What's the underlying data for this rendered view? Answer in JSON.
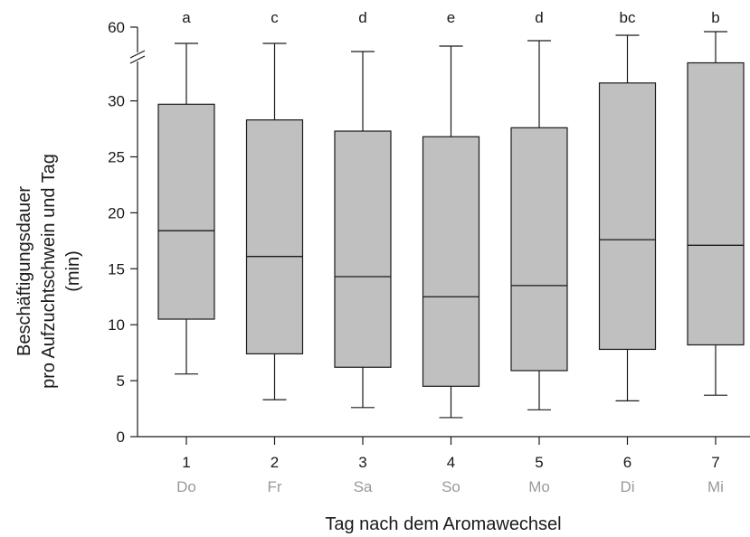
{
  "chart_data": {
    "type": "box",
    "xlabel": "Tag nach dem Aromawechsel",
    "ylabel_lines": [
      "Beschäftigungsdauer",
      "pro Aufzuchtschwein und Tag",
      "(min)"
    ],
    "y_ticks": [
      0,
      5,
      10,
      15,
      20,
      25,
      30
    ],
    "y_break_tick": 60,
    "ylim": [
      0,
      34
    ],
    "y_axis_break": true,
    "grid": false,
    "colors": {
      "box_fill": "#c0c0c0",
      "stroke": "#1a1a1a",
      "weekday_text": "#999999"
    },
    "categories": [
      {
        "day": "1",
        "weekday": "Do",
        "letter": "a",
        "whisker_low": 5.6,
        "q1": 10.5,
        "median": 18.4,
        "q3": 29.7,
        "whisker_high_broken": true,
        "whisker_high_note": "extends above axis break"
      },
      {
        "day": "2",
        "weekday": "Fr",
        "letter": "c",
        "whisker_low": 3.3,
        "q1": 7.4,
        "median": 16.1,
        "q3": 28.3,
        "whisker_high_broken": true
      },
      {
        "day": "3",
        "weekday": "Sa",
        "letter": "d",
        "whisker_low": 2.6,
        "q1": 6.2,
        "median": 14.3,
        "q3": 27.3,
        "whisker_high_broken": true
      },
      {
        "day": "4",
        "weekday": "So",
        "letter": "e",
        "whisker_low": 1.7,
        "q1": 4.5,
        "median": 12.5,
        "q3": 26.8,
        "whisker_high_broken": true
      },
      {
        "day": "5",
        "weekday": "Mo",
        "letter": "d",
        "whisker_low": 2.4,
        "q1": 5.9,
        "median": 13.5,
        "q3": 27.6,
        "whisker_high_broken": true
      },
      {
        "day": "6",
        "weekday": "Di",
        "letter": "bc",
        "whisker_low": 3.2,
        "q1": 7.8,
        "median": 17.6,
        "q3": 31.6,
        "whisker_high_broken": true
      },
      {
        "day": "7",
        "weekday": "Mi",
        "letter": "b",
        "whisker_low": 3.7,
        "q1": 8.2,
        "median": 17.1,
        "q3": 33.4,
        "whisker_high_broken": true
      }
    ]
  }
}
